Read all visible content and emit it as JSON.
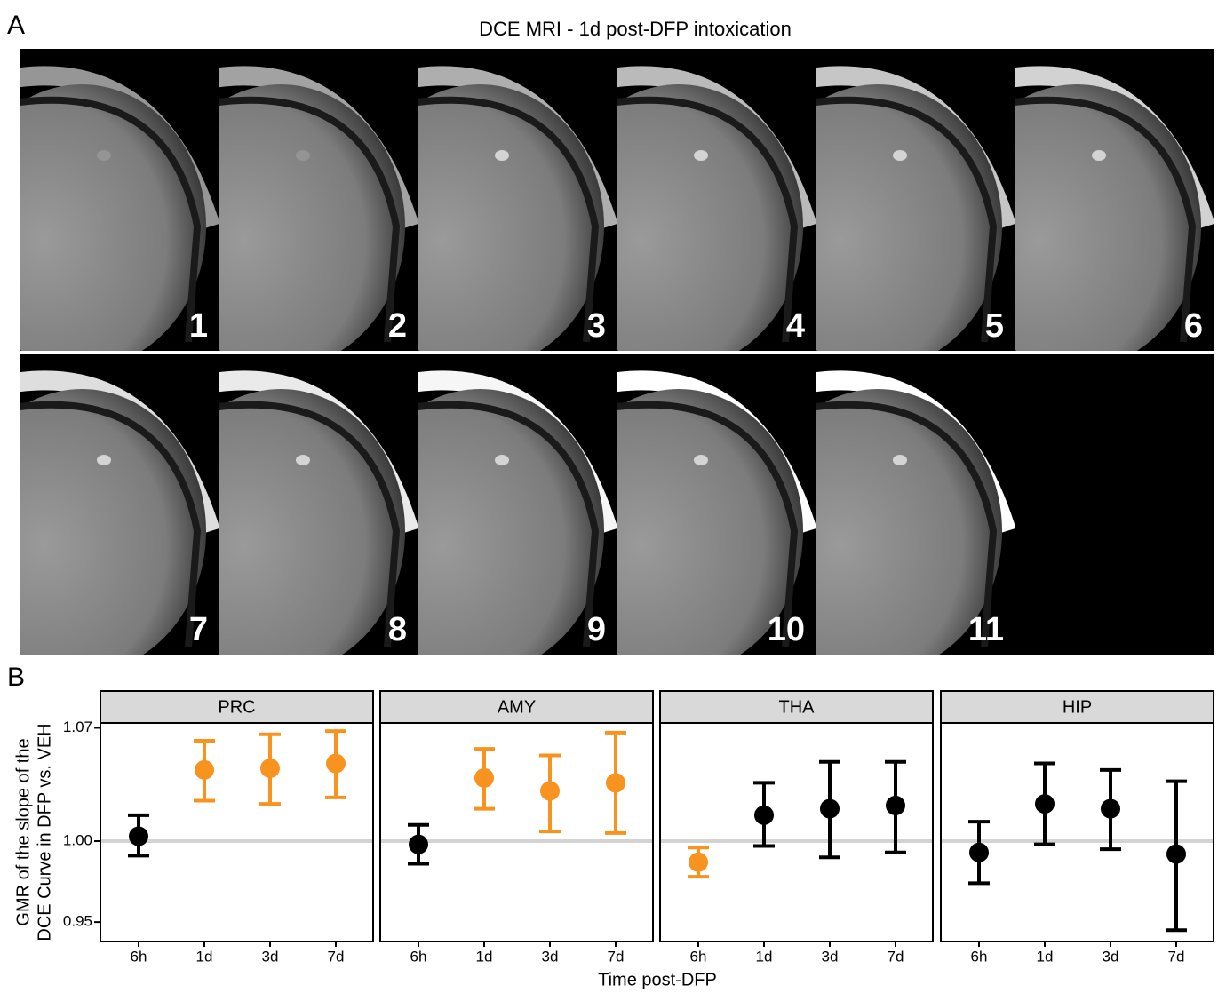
{
  "panel_a": {
    "panel_label": "A",
    "title": "DCE MRI - 1d post-DFP intoxication",
    "frames": [
      "1",
      "2",
      "3",
      "4",
      "5",
      "6",
      "7",
      "8",
      "9",
      "10",
      "11"
    ]
  },
  "chart_data": {
    "type": "pointrange",
    "panel_label": "B",
    "ylabel": [
      "GMR of the slope of the",
      "DCE Curve in DFP vs. VEH"
    ],
    "xlabel": "Time post-DFP",
    "ylim": [
      0.938,
      1.073
    ],
    "yticks": [
      {
        "value": 0.95,
        "label": "0.95"
      },
      {
        "value": 1.0,
        "label": "1.00"
      },
      {
        "value": 1.07,
        "label": "1.07"
      }
    ],
    "reference_line": 1.0,
    "reference_color": "#d3d3d3",
    "facets": [
      {
        "title": "PRC",
        "categories": [
          "6h",
          "1d",
          "3d",
          "7d"
        ],
        "values": [
          1.003,
          1.044,
          1.045,
          1.048
        ],
        "lower": [
          0.991,
          1.025,
          1.023,
          1.027
        ],
        "upper": [
          1.016,
          1.062,
          1.066,
          1.068
        ],
        "colors": [
          "#000000",
          "#f7931e",
          "#f7931e",
          "#f7931e"
        ]
      },
      {
        "title": "AMY",
        "categories": [
          "6h",
          "1d",
          "3d",
          "7d"
        ],
        "values": [
          0.998,
          1.039,
          1.031,
          1.036
        ],
        "lower": [
          0.986,
          1.02,
          1.006,
          1.005
        ],
        "upper": [
          1.01,
          1.057,
          1.053,
          1.067
        ],
        "colors": [
          "#000000",
          "#f7931e",
          "#f7931e",
          "#f7931e"
        ]
      },
      {
        "title": "THA",
        "categories": [
          "6h",
          "1d",
          "3d",
          "7d"
        ],
        "values": [
          0.987,
          1.016,
          1.02,
          1.022
        ],
        "lower": [
          0.978,
          0.997,
          0.99,
          0.993
        ],
        "upper": [
          0.996,
          1.036,
          1.049,
          1.049
        ],
        "colors": [
          "#f7931e",
          "#000000",
          "#000000",
          "#000000"
        ]
      },
      {
        "title": "HIP",
        "categories": [
          "6h",
          "1d",
          "3d",
          "7d"
        ],
        "values": [
          0.993,
          1.023,
          1.02,
          0.992
        ],
        "lower": [
          0.974,
          0.998,
          0.995,
          0.945
        ],
        "upper": [
          1.012,
          1.048,
          1.044,
          1.037
        ],
        "colors": [
          "#000000",
          "#000000",
          "#000000",
          "#000000"
        ]
      }
    ]
  }
}
